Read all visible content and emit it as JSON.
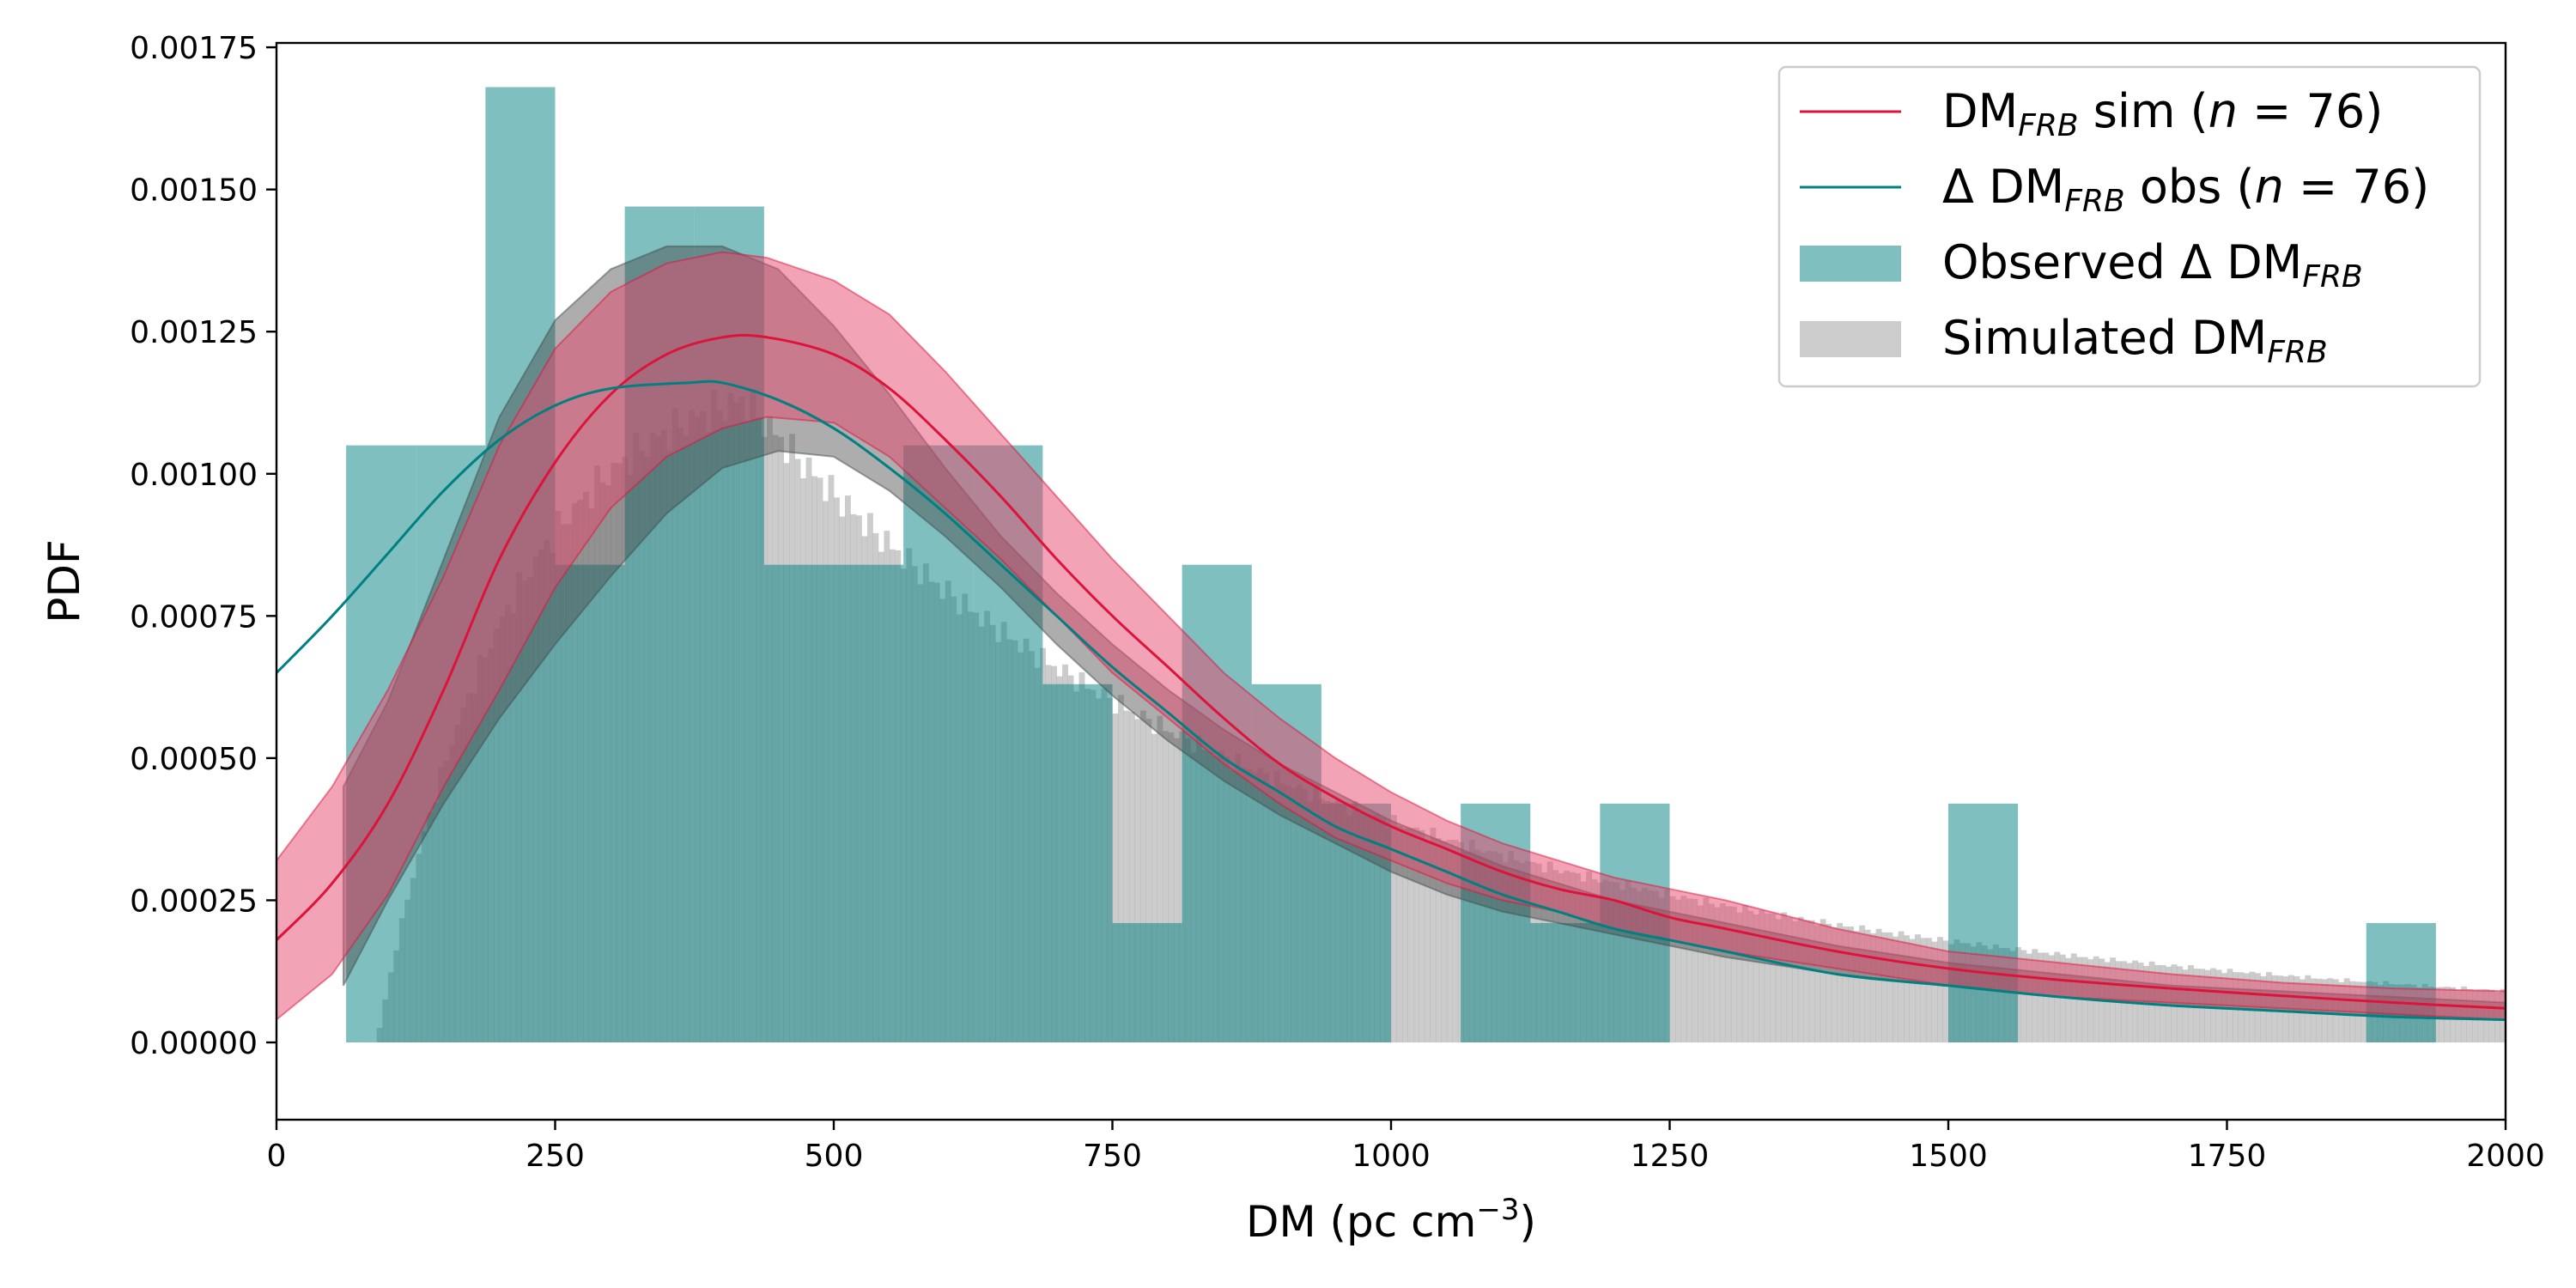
{
  "chart_data": {
    "type": "histogram",
    "xlabel": {
      "prefix": "DM (pc cm",
      "sup": "−3",
      "suffix": ")"
    },
    "ylabel": "PDF",
    "xlim": [
      0,
      2000
    ],
    "ylim": [
      -0.000135,
      0.00177
    ],
    "xticks": [
      0,
      250,
      500,
      750,
      1000,
      1250,
      1500,
      1750,
      2000
    ],
    "xtick_labels": [
      "0",
      "250",
      "500",
      "750",
      "1000",
      "1250",
      "1500",
      "1750",
      "2000"
    ],
    "yticks": [
      0,
      0.00025,
      0.0005,
      0.00075,
      0.001,
      0.00125,
      0.0015,
      0.00175
    ],
    "ytick_labels": [
      "0.00000",
      "0.00025",
      "0.00050",
      "0.00075",
      "0.00100",
      "0.00125",
      "0.00150",
      "0.00175"
    ],
    "legend": {
      "placement": "top-right",
      "entries": [
        {
          "kind": "line",
          "color": "#dc143c",
          "main": "DM",
          "sub": "FRB",
          "rest": " sim (",
          "var": "n",
          "eq": " = 76)"
        },
        {
          "kind": "line",
          "color": "#008080",
          "main": "Δ DM",
          "sub": "FRB",
          "rest": " obs (",
          "var": "n",
          "eq": " = 76)"
        },
        {
          "kind": "patch",
          "color": "#80bfbf",
          "main": "Observed Δ DM",
          "sub": "FRB",
          "rest": "",
          "var": "",
          "eq": ""
        },
        {
          "kind": "patch",
          "color": "#cccccc",
          "main": "Simulated DM",
          "sub": "FRB",
          "rest": "",
          "var": "",
          "eq": ""
        }
      ]
    },
    "observed_hist": {
      "color": "#008080",
      "alpha": 0.5,
      "bin_width": 62.5,
      "bins_start": [
        62.5,
        125,
        187.5,
        250,
        312.5,
        375,
        437.5,
        500,
        562.5,
        625,
        687.5,
        750,
        812.5,
        875,
        937.5,
        1000,
        1062.5,
        1125,
        1187.5,
        1250,
        1312.5,
        1375,
        1437.5,
        1500,
        1562.5,
        1625,
        1687.5,
        1750,
        1812.5,
        1875
      ],
      "values": [
        0.00105,
        0.00105,
        0.00168,
        0.00084,
        0.00147,
        0.00147,
        0.00084,
        0.00084,
        0.00105,
        0.00105,
        0.00063,
        0.00021,
        0.00084,
        0.00063,
        0.00042,
        0.0,
        0.00042,
        0.00021,
        0.00042,
        0.0,
        0.0,
        0.0,
        0.0,
        0.00042,
        0.0,
        0.0,
        0.0,
        0.0,
        0.0,
        0.00021
      ]
    },
    "simulated_hist": {
      "color": "#999999",
      "alpha": 0.5,
      "bin_width": 5,
      "x_start": 90,
      "x_end": 2000,
      "model": {
        "peak_x": 420,
        "peak_y": 0.00113,
        "rise": 0.0086,
        "tail_x": 2000,
        "tail_y": 5e-05
      }
    },
    "series": [
      {
        "name": "DM_FRB sim (n = 76)",
        "color": "#dc143c",
        "x": [
          0,
          50,
          100,
          150,
          200,
          250,
          300,
          350,
          400,
          440,
          500,
          550,
          600,
          650,
          700,
          750,
          800,
          850,
          900,
          950,
          1000,
          1050,
          1100,
          1150,
          1200,
          1250,
          1300,
          1400,
          1500,
          1600,
          1700,
          1800,
          1900,
          2000
        ],
        "y": [
          0.00018,
          0.00028,
          0.00042,
          0.00062,
          0.00085,
          0.00102,
          0.00114,
          0.00121,
          0.00124,
          0.00124,
          0.00121,
          0.00115,
          0.00106,
          0.00096,
          0.00085,
          0.00075,
          0.00066,
          0.00057,
          0.00049,
          0.00043,
          0.00038,
          0.00034,
          0.0003,
          0.00027,
          0.00025,
          0.00022,
          0.0002,
          0.00016,
          0.00013,
          0.00011,
          9.5e-05,
          8.2e-05,
          7e-05,
          6e-05
        ],
        "band": {
          "color": "#e8476e",
          "alpha": 0.5,
          "lower": [
            4e-05,
            0.00012,
            0.00026,
            0.00045,
            0.00062,
            0.0008,
            0.00094,
            0.00103,
            0.00108,
            0.0011,
            0.00109,
            0.00103,
            0.00094,
            0.00085,
            0.00075,
            0.00065,
            0.00057,
            0.00049,
            0.00042,
            0.00036,
            0.00032,
            0.00028,
            0.00025,
            0.00023,
            0.0002,
            0.00018,
            0.00016,
            0.00013,
            0.0001,
            8e-05,
            7e-05,
            6e-05,
            5e-05,
            4e-05
          ],
          "upper": [
            0.00032,
            0.00045,
            0.00062,
            0.00082,
            0.00105,
            0.00122,
            0.00132,
            0.00137,
            0.00139,
            0.00138,
            0.00134,
            0.00128,
            0.00118,
            0.00107,
            0.00096,
            0.00085,
            0.00075,
            0.00065,
            0.00057,
            0.0005,
            0.00044,
            0.00039,
            0.00035,
            0.00032,
            0.00029,
            0.00027,
            0.00025,
            0.0002,
            0.00016,
            0.00014,
            0.00012,
            0.000105,
            9.5e-05,
            9e-05
          ]
        }
      },
      {
        "name": "Δ DM_FRB obs (n = 76)",
        "color": "#008080",
        "x": [
          0,
          50,
          100,
          150,
          200,
          250,
          300,
          370,
          400,
          450,
          500,
          550,
          600,
          650,
          700,
          750,
          800,
          850,
          900,
          950,
          1000,
          1050,
          1100,
          1150,
          1200,
          1250,
          1300,
          1400,
          1500,
          1600,
          1700,
          1800,
          1900,
          2000
        ],
        "y": [
          0.00065,
          0.00075,
          0.00086,
          0.00097,
          0.00106,
          0.00112,
          0.00115,
          0.00116,
          0.00116,
          0.00113,
          0.00108,
          0.00101,
          0.00093,
          0.00084,
          0.00075,
          0.00066,
          0.00058,
          0.0005,
          0.00044,
          0.00038,
          0.00034,
          0.0003,
          0.00026,
          0.00023,
          0.0002,
          0.00018,
          0.00016,
          0.00012,
          0.0001,
          8e-05,
          6.5e-05,
          5.5e-05,
          4.5e-05,
          4e-05
        ]
      }
    ],
    "dark_band": {
      "color": "#4a4a4a",
      "alpha": 0.45,
      "x": [
        60,
        100,
        150,
        200,
        250,
        300,
        350,
        400,
        450,
        500,
        550,
        600,
        650,
        700,
        750,
        800,
        850,
        900,
        950,
        1000,
        1050,
        1100,
        1150,
        1200,
        1250,
        1300,
        1400,
        1500,
        1600,
        1700,
        1800,
        1900,
        2000
      ],
      "lower": [
        0.0001,
        0.00025,
        0.00042,
        0.00057,
        0.0007,
        0.00082,
        0.00093,
        0.00101,
        0.00104,
        0.00103,
        0.00097,
        0.00089,
        0.0008,
        0.0007,
        0.00061,
        0.00053,
        0.00046,
        0.0004,
        0.00035,
        0.0003,
        0.00026,
        0.00023,
        0.00021,
        0.00019,
        0.00017,
        0.00015,
        0.00012,
        0.0001,
        8e-05,
        6.5e-05,
        5.5e-05,
        4.5e-05,
        4e-05
      ],
      "upper": [
        0.00045,
        0.0006,
        0.00085,
        0.0011,
        0.00127,
        0.00136,
        0.0014,
        0.0014,
        0.00136,
        0.00126,
        0.00114,
        0.00101,
        0.00089,
        0.00079,
        0.0007,
        0.00062,
        0.00055,
        0.00049,
        0.00044,
        0.00039,
        0.00035,
        0.00031,
        0.00028,
        0.00025,
        0.00023,
        0.00021,
        0.00017,
        0.00014,
        0.00012,
        0.0001,
        9e-05,
        8e-05,
        7e-05
      ]
    }
  }
}
